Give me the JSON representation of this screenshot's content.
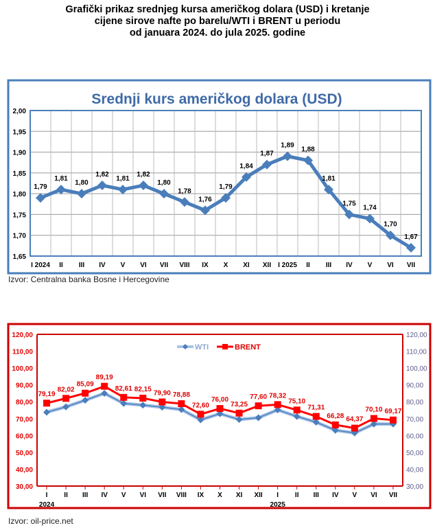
{
  "heading": [
    "Grafički prikaz srednjeg kursa američkog dolara (USD) i kretanje",
    "cijene sirove nafte po barelu/WTI i BRENT u periodu",
    "od januara 2024. do jula 2025. godine"
  ],
  "chart_data": [
    {
      "type": "line",
      "title": "Srednji kurs američkog dolara (USD)",
      "categories": [
        "I 2024",
        "II",
        "III",
        "IV",
        "V",
        "VI",
        "VII",
        "VIII",
        "IX",
        "X",
        "XI",
        "XII",
        "I 2025",
        "II",
        "III",
        "IV",
        "V",
        "VI",
        "VII"
      ],
      "series": [
        {
          "name": "USD",
          "values": [
            1.79,
            1.81,
            1.8,
            1.82,
            1.81,
            1.82,
            1.8,
            1.78,
            1.76,
            1.79,
            1.84,
            1.87,
            1.89,
            1.88,
            1.81,
            1.75,
            1.74,
            1.7,
            1.67
          ],
          "labels": [
            "1,79",
            "1,81",
            "1,80",
            "1,82",
            "1,81",
            "1,82",
            "1,80",
            "1,78",
            "1,76",
            "1,79",
            "1,84",
            "1,87",
            "1,89",
            "1,88",
            "1,81",
            "1,75",
            "1,74",
            "1,70",
            "1,67"
          ],
          "color": "#4a7ebb"
        }
      ],
      "yticks": [
        "1,65",
        "1,70",
        "1,75",
        "1,80",
        "1,85",
        "1,90",
        "1,95",
        "2,00"
      ],
      "ylim": [
        1.65,
        2.0
      ],
      "grid": true,
      "source": "Izvor: Centralna  banka Bosne i Hercegovine"
    },
    {
      "type": "line",
      "categories": [
        "I",
        "II",
        "III",
        "IV",
        "V",
        "VI",
        "VII",
        "VIII",
        "IX",
        "X",
        "XI",
        "XII",
        "I",
        "II",
        "III",
        "IV",
        "V",
        "VI",
        "VII"
      ],
      "year_labels": [
        {
          "index": 0,
          "text": "2024"
        },
        {
          "index": 12,
          "text": "2025"
        }
      ],
      "series": [
        {
          "name": "WTI",
          "values": [
            73.8,
            77.0,
            80.9,
            85.0,
            79.0,
            78.0,
            76.8,
            75.4,
            69.3,
            72.9,
            69.5,
            70.5,
            75.2,
            71.3,
            67.9,
            63.1,
            61.5,
            66.8,
            66.8
          ],
          "color": "#4a7ebb"
        },
        {
          "name": "BRENT",
          "values": [
            79.19,
            82.02,
            85.09,
            89.19,
            82.61,
            82.15,
            79.9,
            78.88,
            72.6,
            76.0,
            73.25,
            77.6,
            78.32,
            75.1,
            71.31,
            66.28,
            64.37,
            70.1,
            69.17
          ],
          "labels": [
            "79,19",
            "82,02",
            "85,09",
            "89,19",
            "82,61",
            "82,15",
            "79,90",
            "78,88",
            "72,60",
            "76,00",
            "73,25",
            "77,60",
            "78,32",
            "75,10",
            "71,31",
            "66,28",
            "64,37",
            "70,10",
            "69,17"
          ],
          "color": "#ff0000"
        }
      ],
      "yticks": [
        "30,00",
        "40,00",
        "50,00",
        "60,00",
        "70,00",
        "80,00",
        "90,00",
        "100,00",
        "110,00",
        "120,00"
      ],
      "ylim": [
        30,
        120
      ],
      "legend": "top-center",
      "source": "Izvor: oil-price.net"
    }
  ]
}
